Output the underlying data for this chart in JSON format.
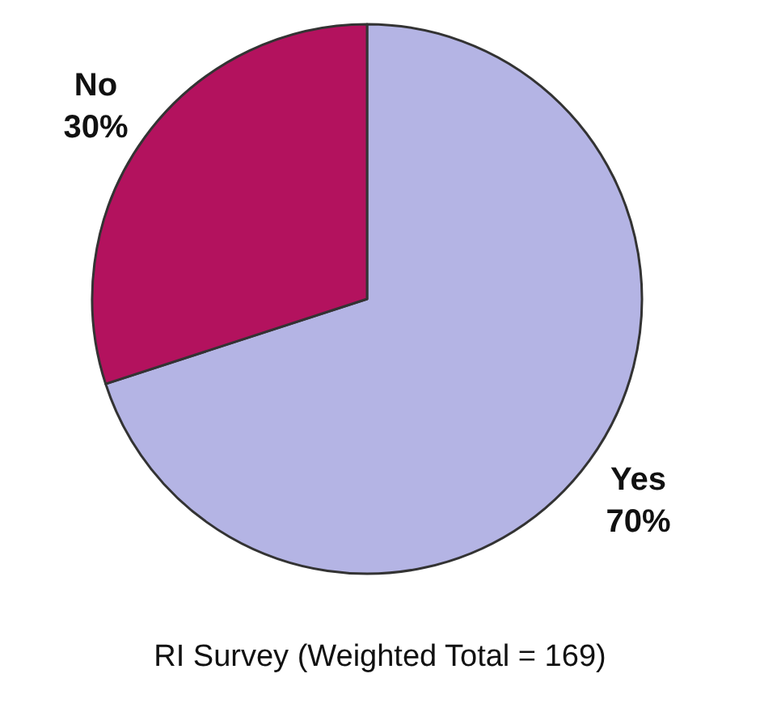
{
  "chart_data": {
    "type": "pie",
    "categories": [
      "Yes",
      "No"
    ],
    "values": [
      70,
      30
    ],
    "colors": [
      "#b4b4e4",
      "#b3125e"
    ],
    "value_labels": [
      "70%",
      "30%"
    ],
    "annotations": [
      "RI Survey (Weighted Total = 169)"
    ]
  }
}
